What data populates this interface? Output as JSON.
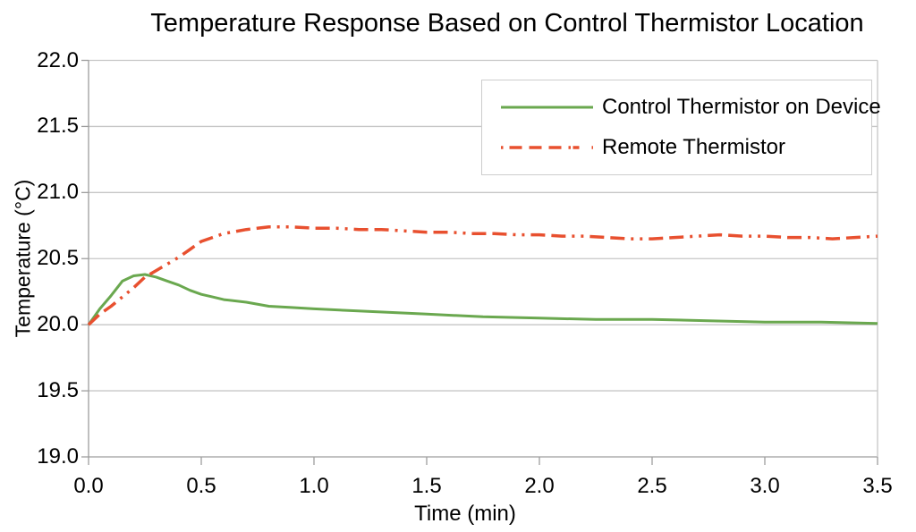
{
  "chart_data": {
    "type": "line",
    "title": "Temperature Response Based on Control Thermistor Location",
    "xlabel": "Time (min)",
    "ylabel": "Temperature (°C)",
    "xlim": [
      0.0,
      3.5
    ],
    "ylim": [
      19.0,
      22.0
    ],
    "x_ticks": [
      "0.0",
      "0.5",
      "1.0",
      "1.5",
      "2.0",
      "2.5",
      "3.0",
      "3.5"
    ],
    "y_ticks": [
      "19.0",
      "19.5",
      "20.0",
      "20.5",
      "21.0",
      "21.5",
      "22.0"
    ],
    "grid": "horizontal-only",
    "legend_position": "top-right",
    "series": [
      {
        "name": "Control Thermistor on Device",
        "color": "#6aa84f",
        "style": "solid",
        "x": [
          0,
          0.05,
          0.1,
          0.15,
          0.2,
          0.25,
          0.3,
          0.35,
          0.4,
          0.45,
          0.5,
          0.55,
          0.6,
          0.7,
          0.8,
          0.9,
          1.0,
          1.25,
          1.5,
          1.75,
          2.0,
          2.25,
          2.5,
          2.75,
          3.0,
          3.25,
          3.5
        ],
        "y": [
          20.0,
          20.12,
          20.22,
          20.33,
          20.37,
          20.38,
          20.36,
          20.33,
          20.3,
          20.26,
          20.23,
          20.21,
          20.19,
          20.17,
          20.14,
          20.13,
          20.12,
          20.1,
          20.08,
          20.06,
          20.05,
          20.04,
          20.04,
          20.03,
          20.02,
          20.02,
          20.01
        ]
      },
      {
        "name": "Remote Thermistor",
        "color": "#e8502f",
        "style": "dash-dash-dot-dot",
        "x": [
          0,
          0.05,
          0.1,
          0.15,
          0.2,
          0.25,
          0.3,
          0.35,
          0.4,
          0.45,
          0.5,
          0.55,
          0.6,
          0.7,
          0.8,
          0.9,
          1.0,
          1.1,
          1.2,
          1.3,
          1.4,
          1.5,
          1.6,
          1.7,
          1.8,
          1.9,
          2.0,
          2.1,
          2.2,
          2.3,
          2.4,
          2.5,
          2.6,
          2.7,
          2.8,
          2.9,
          3.0,
          3.1,
          3.2,
          3.3,
          3.4,
          3.5
        ],
        "y": [
          20.0,
          20.08,
          20.14,
          20.21,
          20.28,
          20.36,
          20.41,
          20.46,
          20.51,
          20.57,
          20.63,
          20.66,
          20.69,
          20.72,
          20.74,
          20.74,
          20.73,
          20.73,
          20.72,
          20.72,
          20.71,
          20.7,
          20.7,
          20.69,
          20.69,
          20.68,
          20.68,
          20.67,
          20.67,
          20.66,
          20.65,
          20.65,
          20.66,
          20.67,
          20.68,
          20.67,
          20.67,
          20.66,
          20.66,
          20.65,
          20.66,
          20.67
        ]
      }
    ]
  },
  "colors": {
    "background": "#ffffff",
    "gridline": "#c6c6c6",
    "axis": "#9d9d9d",
    "text": "#000000",
    "legend_border": "#cdcdcd"
  }
}
